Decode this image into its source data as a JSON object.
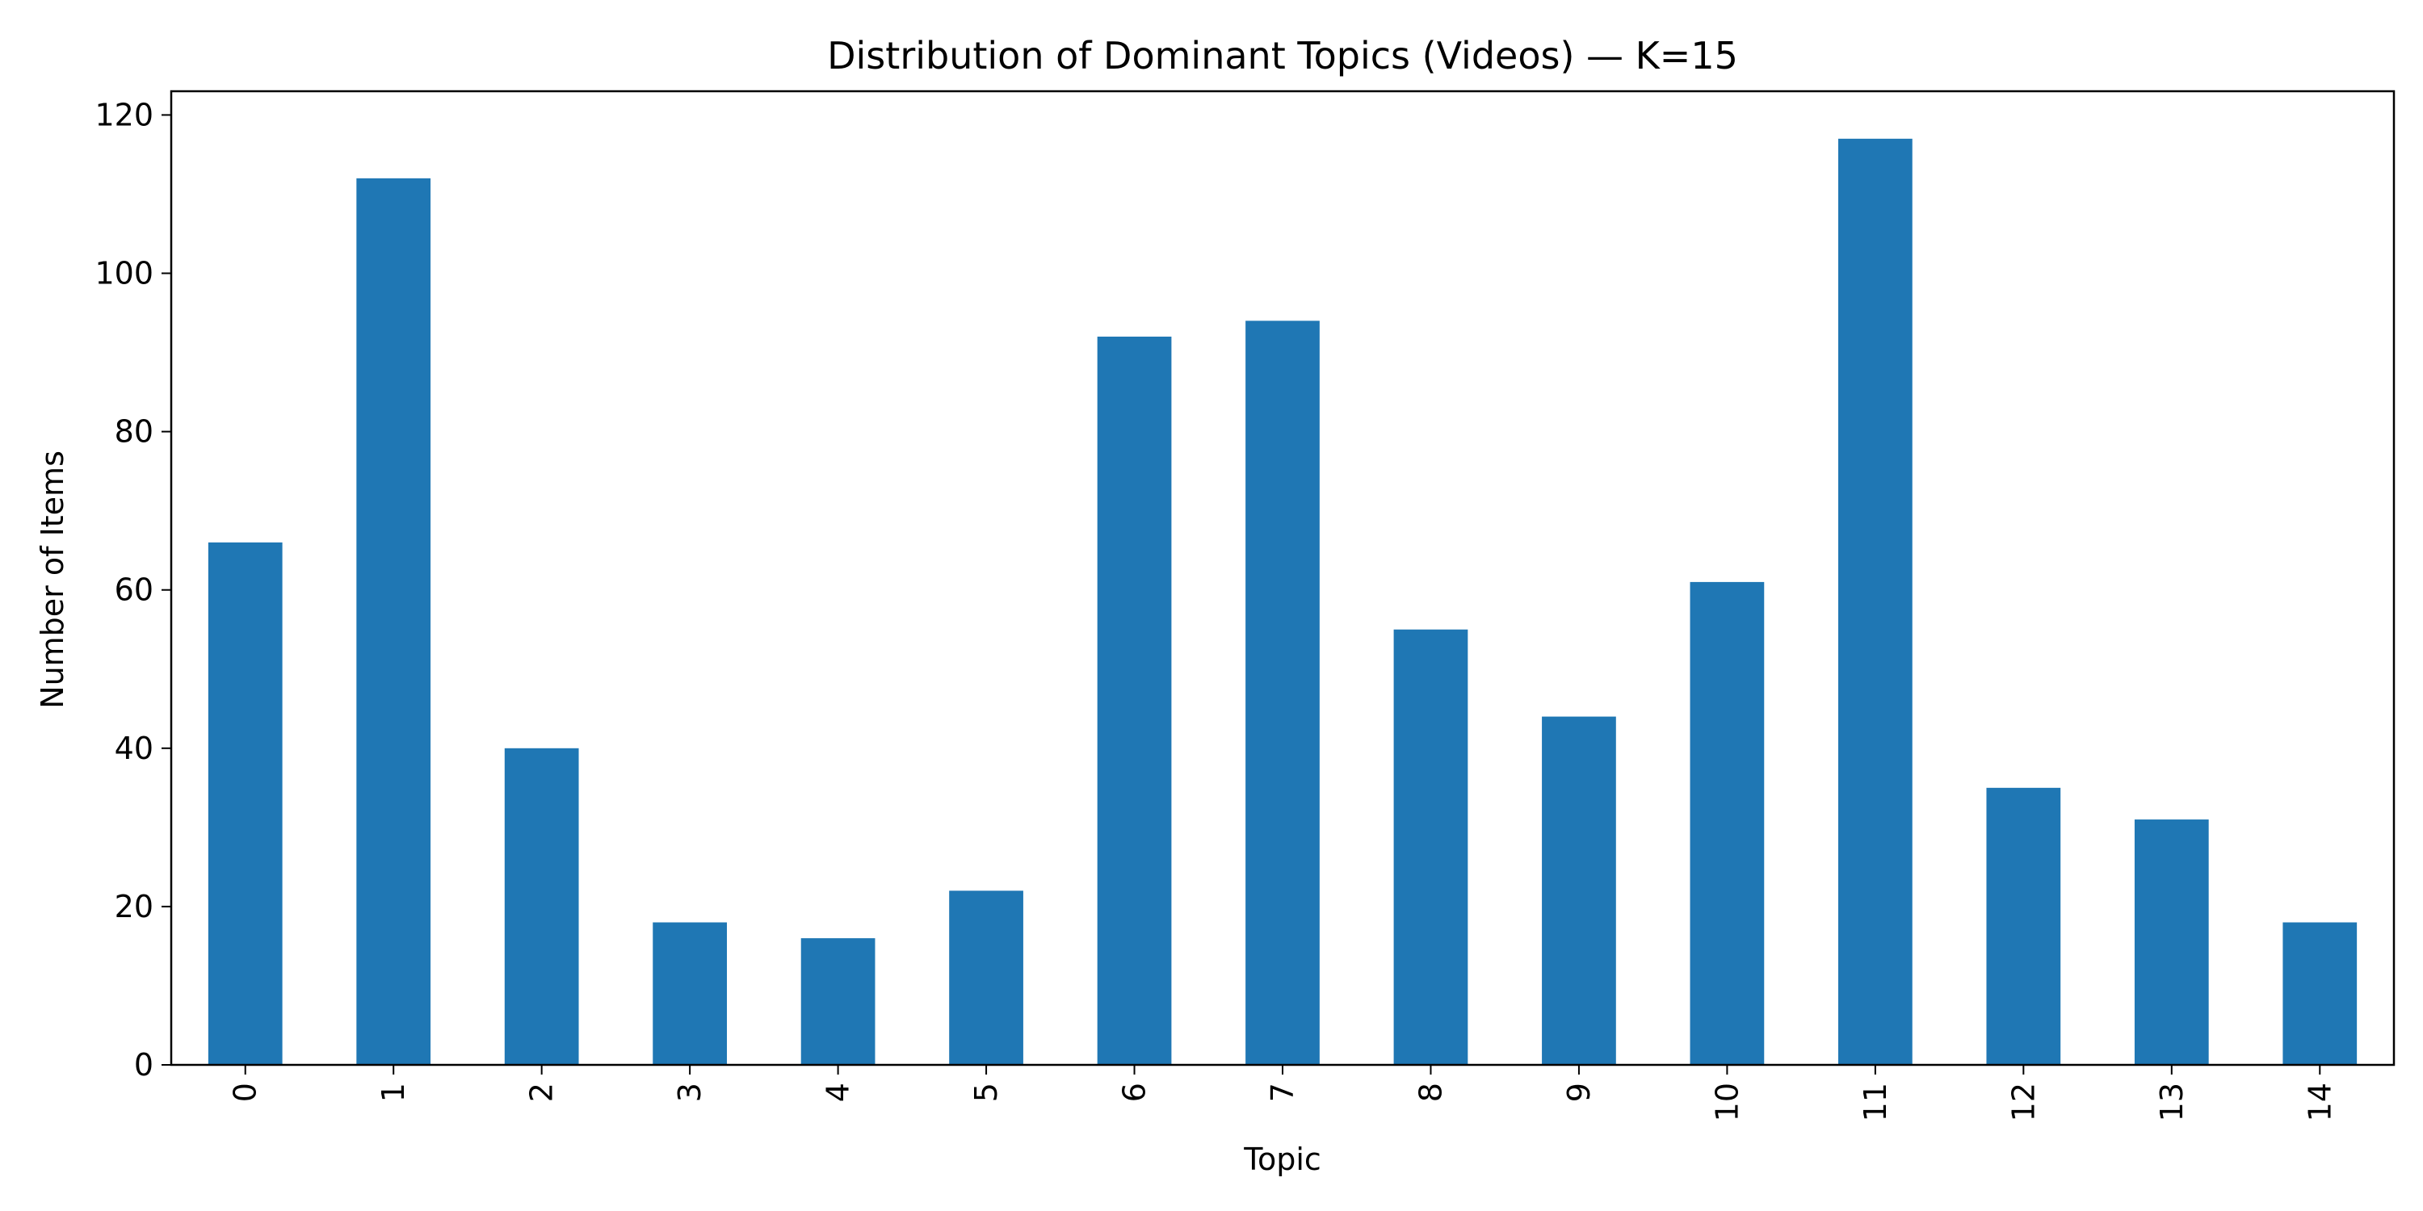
{
  "chart_data": {
    "type": "bar",
    "title": "Distribution of Dominant Topics (Videos) — K=15",
    "xlabel": "Topic",
    "ylabel": "Number of Items",
    "categories": [
      "0",
      "1",
      "2",
      "3",
      "4",
      "5",
      "6",
      "7",
      "8",
      "9",
      "10",
      "11",
      "12",
      "13",
      "14"
    ],
    "values": [
      66,
      112,
      40,
      18,
      16,
      22,
      92,
      94,
      55,
      44,
      61,
      117,
      35,
      31,
      18
    ],
    "ylim": [
      0,
      123
    ],
    "yticks": [
      0,
      20,
      40,
      60,
      80,
      100,
      120
    ],
    "grid": false,
    "legend": "none",
    "bar_color": "#1f77b4",
    "xtick_rotation": "vertical"
  }
}
